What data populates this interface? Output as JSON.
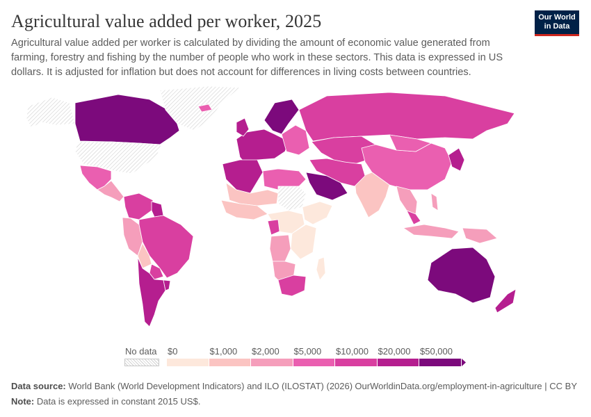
{
  "header": {
    "title": "Agricultural value added per worker, 2025",
    "subtitle": "Agricultural value added per worker is calculated by dividing the amount of economic value generated from farming, forestry and fishing by the number of people who work in these sectors. This data is expressed in US dollars. It is adjusted for inflation but does not account for differences in living costs between countries."
  },
  "logo": {
    "line1": "Our World",
    "line2": "in Data"
  },
  "legend": {
    "no_data_label": "No data",
    "bins": [
      {
        "label": "$0",
        "color": "#fde8dc"
      },
      {
        "label": "$1,000",
        "color": "#fbc4c2"
      },
      {
        "label": "$2,000",
        "color": "#f59ebb"
      },
      {
        "label": "$5,000",
        "color": "#ea5fb0"
      },
      {
        "label": "$10,000",
        "color": "#d93fa0"
      },
      {
        "label": "$20,000",
        "color": "#b51e8f"
      },
      {
        "label": "$50,000",
        "color": "#7c0a7c"
      }
    ]
  },
  "footer": {
    "source_label": "Data source:",
    "source_text": "World Bank (World Development Indicators) and ILO (ILOSTAT) (2026)",
    "url_text": "OurWorldinData.org/employment-in-agriculture | CC BY",
    "note_label": "Note:",
    "note_text": "Data is expressed in constant 2015 US$."
  },
  "map_regions": [
    {
      "name": "canada",
      "color": "#7c0a7c"
    },
    {
      "name": "alaska",
      "color": "#ffffff"
    },
    {
      "name": "greenland",
      "color": "#ffffff"
    },
    {
      "name": "usa",
      "color": "#ffffff"
    },
    {
      "name": "mexico",
      "color": "#ea5fb0"
    },
    {
      "name": "central-america",
      "color": "#f59ebb"
    },
    {
      "name": "colombia-venezuela",
      "color": "#d93fa0"
    },
    {
      "name": "guyana-suriname",
      "color": "#b51e8f"
    },
    {
      "name": "peru-ecuador",
      "color": "#f59ebb"
    },
    {
      "name": "brazil",
      "color": "#d93fa0"
    },
    {
      "name": "bolivia",
      "color": "#fbc4c2"
    },
    {
      "name": "paraguay",
      "color": "#d93fa0"
    },
    {
      "name": "argentina-chile",
      "color": "#b51e8f"
    },
    {
      "name": "uruguay",
      "color": "#b51e8f"
    },
    {
      "name": "western-europe",
      "color": "#b51e8f"
    },
    {
      "name": "scandinavia",
      "color": "#7c0a7c"
    },
    {
      "name": "iceland",
      "color": "#ea5fb0"
    },
    {
      "name": "eastern-europe",
      "color": "#ea5fb0"
    },
    {
      "name": "russia",
      "color": "#d93fa0"
    },
    {
      "name": "kazakhstan-central-asia",
      "color": "#d93fa0"
    },
    {
      "name": "china",
      "color": "#ea5fb0"
    },
    {
      "name": "mongolia",
      "color": "#ea5fb0"
    },
    {
      "name": "japan-korea",
      "color": "#b51e8f"
    },
    {
      "name": "india",
      "color": "#fbc4c2"
    },
    {
      "name": "southeast-asia",
      "color": "#f59ebb"
    },
    {
      "name": "indonesia",
      "color": "#f59ebb"
    },
    {
      "name": "malaysia",
      "color": "#d93fa0"
    },
    {
      "name": "new-guinea",
      "color": "#f59ebb"
    },
    {
      "name": "philippines",
      "color": "#f59ebb"
    },
    {
      "name": "middle-east-iran",
      "color": "#d93fa0"
    },
    {
      "name": "saudi-arabia",
      "color": "#7c0a7c"
    },
    {
      "name": "north-africa-west",
      "color": "#b51e8f"
    },
    {
      "name": "north-africa-east",
      "color": "#ea5fb0"
    },
    {
      "name": "sahel",
      "color": "#fbc4c2"
    },
    {
      "name": "west-africa",
      "color": "#fbc4c2"
    },
    {
      "name": "sudan-nodata",
      "color": "#ffffff"
    },
    {
      "name": "horn-of-africa",
      "color": "#fde8dc"
    },
    {
      "name": "central-africa",
      "color": "#fde8dc"
    },
    {
      "name": "gabon-congo",
      "color": "#d93fa0"
    },
    {
      "name": "angola",
      "color": "#f59ebb"
    },
    {
      "name": "east-africa",
      "color": "#fde8dc"
    },
    {
      "name": "namibia-botswana",
      "color": "#f59ebb"
    },
    {
      "name": "south-africa",
      "color": "#d93fa0"
    },
    {
      "name": "madagascar",
      "color": "#fde8dc"
    },
    {
      "name": "australia",
      "color": "#7c0a7c"
    },
    {
      "name": "new-zealand",
      "color": "#b51e8f"
    },
    {
      "name": "uk-ireland",
      "color": "#b51e8f"
    }
  ]
}
